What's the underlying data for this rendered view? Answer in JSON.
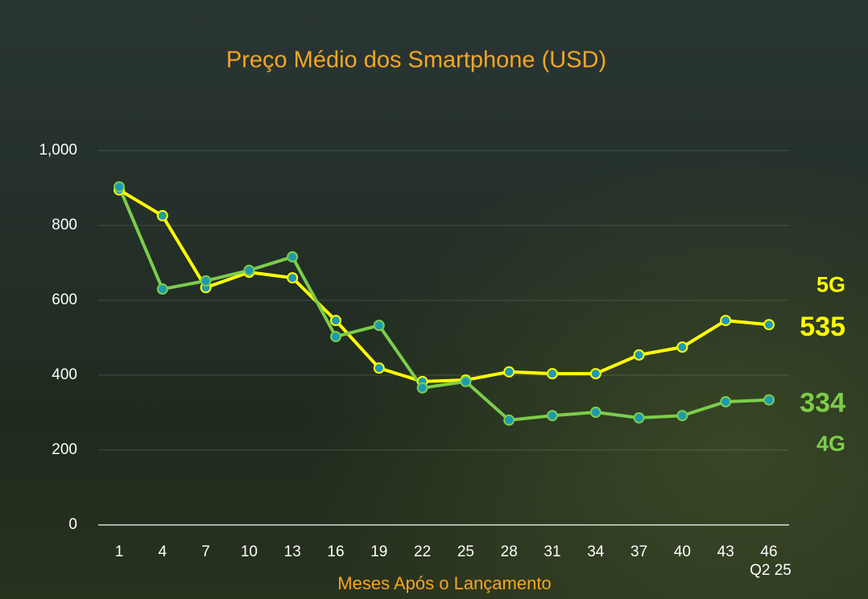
{
  "chart_data": {
    "type": "line",
    "title": "Preço Médio dos Smartphone (USD)",
    "x_label": "Meses Após o Lançamento",
    "annotation": "Q2 25",
    "categories": [
      "1",
      "4",
      "7",
      "10",
      "13",
      "16",
      "19",
      "22",
      "25",
      "28",
      "31",
      "34",
      "37",
      "40",
      "43",
      "46"
    ],
    "series": [
      {
        "name": "5G",
        "color": "#ffff00",
        "values": [
          895,
          826,
          634,
          675,
          660,
          546,
          419,
          383,
          387,
          409,
          404,
          404,
          454,
          475,
          546,
          535
        ]
      },
      {
        "name": "4G",
        "color": "#7ccd4a",
        "values": [
          903,
          630,
          652,
          680,
          716,
          503,
          533,
          366,
          383,
          280,
          292,
          301,
          286,
          292,
          329,
          334
        ]
      }
    ],
    "marker_color": "#1e9ab0",
    "ylim": [
      0,
      1000
    ],
    "yticks": [
      0,
      200,
      400,
      600,
      800,
      {
        "value": 1000,
        "label": "1,000"
      }
    ],
    "grid": true
  }
}
